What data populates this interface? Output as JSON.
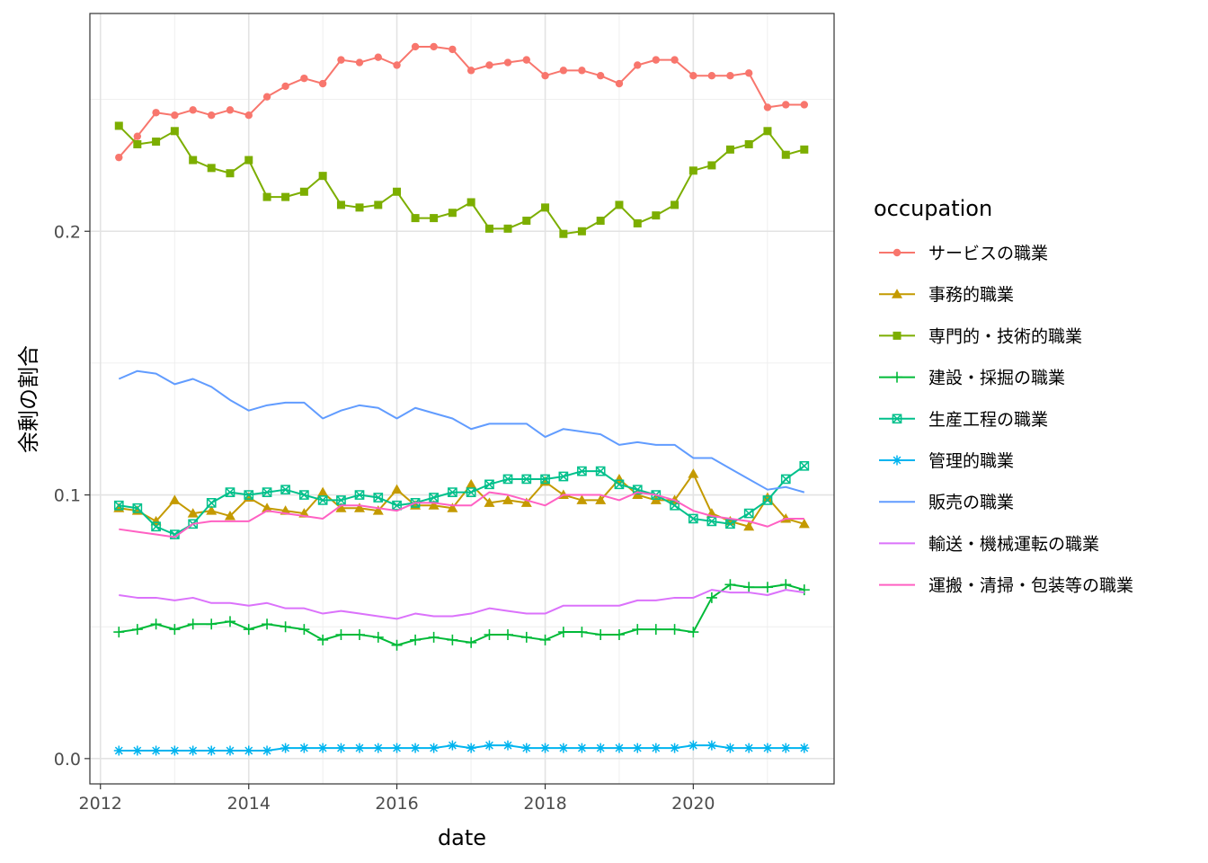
{
  "chart_data": {
    "type": "line",
    "xlabel": "date",
    "ylabel": "余剰の割合",
    "xlim": [
      "2011-11-10",
      "2021-11-25"
    ],
    "ylim": [
      -0.0096,
      0.2826
    ],
    "x_ticks": [
      {
        "value": "2012-01-01",
        "label": "2012"
      },
      {
        "value": "2014-01-01",
        "label": "2014"
      },
      {
        "value": "2016-01-01",
        "label": "2016"
      },
      {
        "value": "2018-01-01",
        "label": "2018"
      },
      {
        "value": "2020-01-01",
        "label": "2020"
      }
    ],
    "y_ticks": [
      {
        "value": 0.0,
        "label": "0.0"
      },
      {
        "value": 0.1,
        "label": "0.1"
      },
      {
        "value": 0.2,
        "label": "0.2"
      }
    ],
    "grid": true,
    "legend_title": "occupation",
    "legend_position": "right",
    "x": [
      "2012-04-01",
      "2012-07-01",
      "2012-10-01",
      "2013-01-01",
      "2013-04-01",
      "2013-07-01",
      "2013-10-01",
      "2014-01-01",
      "2014-04-01",
      "2014-07-01",
      "2014-10-01",
      "2015-01-01",
      "2015-04-01",
      "2015-07-01",
      "2015-10-01",
      "2016-01-01",
      "2016-04-01",
      "2016-07-01",
      "2016-10-01",
      "2017-01-01",
      "2017-04-01",
      "2017-07-01",
      "2017-10-01",
      "2018-01-01",
      "2018-04-01",
      "2018-07-01",
      "2018-10-01",
      "2019-01-01",
      "2019-04-01",
      "2019-07-01",
      "2019-10-01",
      "2020-01-01",
      "2020-04-01",
      "2020-07-01",
      "2020-10-01",
      "2021-01-01",
      "2021-04-01",
      "2021-07-01"
    ],
    "series": [
      {
        "name": "サービスの職業",
        "color": "#F8766D",
        "marker": "circle",
        "values": [
          0.228,
          0.236,
          0.245,
          0.244,
          0.246,
          0.244,
          0.246,
          0.244,
          0.251,
          0.255,
          0.258,
          0.256,
          0.265,
          0.264,
          0.266,
          0.263,
          0.27,
          0.27,
          0.269,
          0.261,
          0.263,
          0.264,
          0.265,
          0.259,
          0.261,
          0.261,
          0.259,
          0.256,
          0.263,
          0.265,
          0.265,
          0.259,
          0.259,
          0.259,
          0.26,
          0.247,
          0.248,
          0.248
        ]
      },
      {
        "name": "事務的職業",
        "color": "#C49A00",
        "marker": "triangle",
        "values": [
          0.095,
          0.094,
          0.09,
          0.098,
          0.093,
          0.094,
          0.092,
          0.099,
          0.095,
          0.094,
          0.093,
          0.101,
          0.095,
          0.095,
          0.094,
          0.102,
          0.096,
          0.096,
          0.095,
          0.104,
          0.097,
          0.098,
          0.097,
          0.105,
          0.1,
          0.098,
          0.098,
          0.106,
          0.1,
          0.098,
          0.098,
          0.108,
          0.093,
          0.09,
          0.088,
          0.099,
          0.091,
          0.089
        ]
      },
      {
        "name": "専門的・技術的職業",
        "color": "#7CAE00",
        "marker": "square",
        "values": [
          0.24,
          0.233,
          0.234,
          0.238,
          0.227,
          0.224,
          0.222,
          0.227,
          0.213,
          0.213,
          0.215,
          0.221,
          0.21,
          0.209,
          0.21,
          0.215,
          0.205,
          0.205,
          0.207,
          0.211,
          0.201,
          0.201,
          0.204,
          0.209,
          0.199,
          0.2,
          0.204,
          0.21,
          0.203,
          0.206,
          0.21,
          0.223,
          0.225,
          0.231,
          0.233,
          0.238,
          0.229,
          0.231
        ]
      },
      {
        "name": "建設・採掘の職業",
        "color": "#00BA38",
        "marker": "plus",
        "values": [
          0.048,
          0.049,
          0.051,
          0.049,
          0.051,
          0.051,
          0.052,
          0.049,
          0.051,
          0.05,
          0.049,
          0.045,
          0.047,
          0.047,
          0.046,
          0.043,
          0.045,
          0.046,
          0.045,
          0.044,
          0.047,
          0.047,
          0.046,
          0.045,
          0.048,
          0.048,
          0.047,
          0.047,
          0.049,
          0.049,
          0.049,
          0.048,
          0.061,
          0.066,
          0.065,
          0.065,
          0.066,
          0.064
        ]
      },
      {
        "name": "生産工程の職業",
        "color": "#00C08B",
        "marker": "square-x",
        "values": [
          0.096,
          0.095,
          0.088,
          0.085,
          0.089,
          0.097,
          0.101,
          0.1,
          0.101,
          0.102,
          0.1,
          0.098,
          0.098,
          0.1,
          0.099,
          0.096,
          0.097,
          0.099,
          0.101,
          0.101,
          0.104,
          0.106,
          0.106,
          0.106,
          0.107,
          0.109,
          0.109,
          0.104,
          0.102,
          0.1,
          0.096,
          0.091,
          0.09,
          0.089,
          0.093,
          0.098,
          0.106,
          0.111
        ]
      },
      {
        "name": "管理的職業",
        "color": "#00B4EF",
        "marker": "asterisk",
        "values": [
          0.003,
          0.003,
          0.003,
          0.003,
          0.003,
          0.003,
          0.003,
          0.003,
          0.003,
          0.004,
          0.004,
          0.004,
          0.004,
          0.004,
          0.004,
          0.004,
          0.004,
          0.004,
          0.005,
          0.004,
          0.005,
          0.005,
          0.004,
          0.004,
          0.004,
          0.004,
          0.004,
          0.004,
          0.004,
          0.004,
          0.004,
          0.005,
          0.005,
          0.004,
          0.004,
          0.004,
          0.004,
          0.004
        ]
      },
      {
        "name": "販売の職業",
        "color": "#619CFF",
        "marker": "none",
        "values": [
          0.144,
          0.147,
          0.146,
          0.142,
          0.144,
          0.141,
          0.136,
          0.132,
          0.134,
          0.135,
          0.135,
          0.129,
          0.132,
          0.134,
          0.133,
          0.129,
          0.133,
          0.131,
          0.129,
          0.125,
          0.127,
          0.127,
          0.127,
          0.122,
          0.125,
          0.124,
          0.123,
          0.119,
          0.12,
          0.119,
          0.119,
          0.114,
          0.114,
          0.11,
          0.106,
          0.102,
          0.103,
          0.101
        ]
      },
      {
        "name": "輸送・機械運転の職業",
        "color": "#DB72FB",
        "marker": "none",
        "values": [
          0.062,
          0.061,
          0.061,
          0.06,
          0.061,
          0.059,
          0.059,
          0.058,
          0.059,
          0.057,
          0.057,
          0.055,
          0.056,
          0.055,
          0.054,
          0.053,
          0.055,
          0.054,
          0.054,
          0.055,
          0.057,
          0.056,
          0.055,
          0.055,
          0.058,
          0.058,
          0.058,
          0.058,
          0.06,
          0.06,
          0.061,
          0.061,
          0.064,
          0.063,
          0.063,
          0.062,
          0.064,
          0.063
        ]
      },
      {
        "name": "運搬・清掃・包装等の職業",
        "color": "#FF61C3",
        "marker": "none",
        "values": [
          0.087,
          0.086,
          0.085,
          0.084,
          0.089,
          0.09,
          0.09,
          0.09,
          0.094,
          0.093,
          0.092,
          0.091,
          0.096,
          0.096,
          0.095,
          0.094,
          0.097,
          0.097,
          0.096,
          0.096,
          0.101,
          0.1,
          0.098,
          0.096,
          0.1,
          0.1,
          0.1,
          0.098,
          0.101,
          0.1,
          0.098,
          0.094,
          0.092,
          0.091,
          0.09,
          0.088,
          0.091,
          0.091
        ]
      }
    ]
  }
}
